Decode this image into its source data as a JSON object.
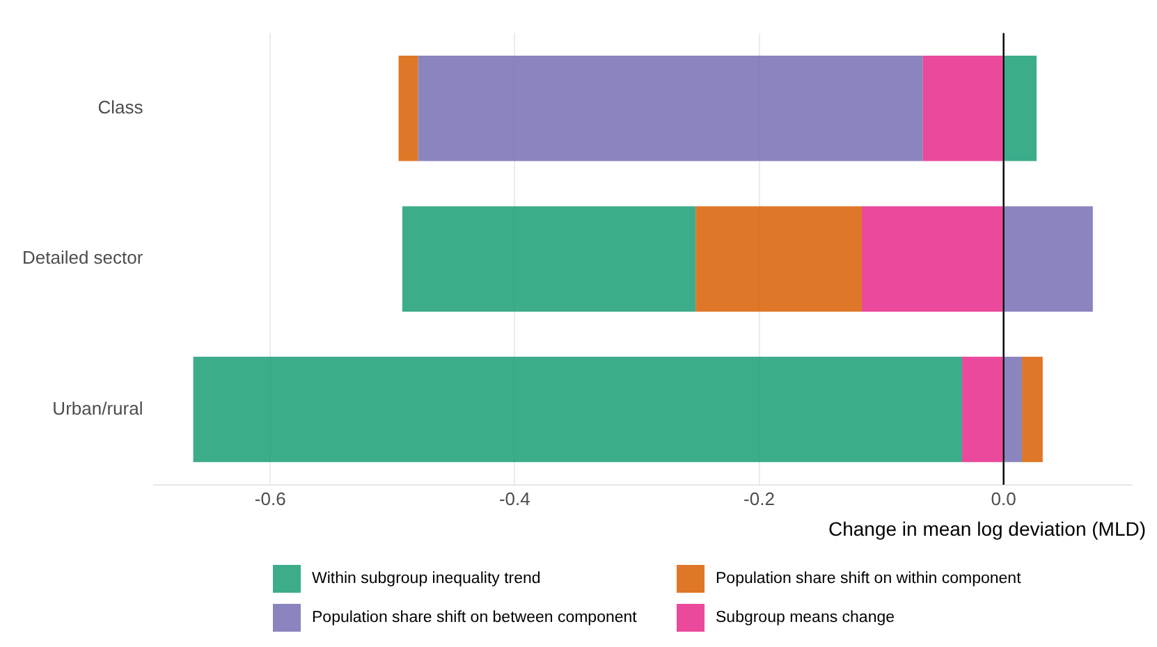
{
  "chart_data": {
    "type": "bar",
    "orientation": "horizontal",
    "stacked": true,
    "xlabel": "Change in mean log deviation (MLD)",
    "categories": [
      "Class",
      "Detailed sector",
      "Urban/rural"
    ],
    "series": [
      {
        "name": "Subgroup means change",
        "color": "#e7298a",
        "values": [
          -0.066,
          -0.116,
          -0.034
        ]
      },
      {
        "name": "Population share shift on between component",
        "color": "#7570b3",
        "values": [
          -0.413,
          0.073,
          0.015
        ]
      },
      {
        "name": "Population share shift on within component",
        "color": "#d95f02",
        "values": [
          -0.016,
          -0.136,
          0.017
        ]
      },
      {
        "name": "Within subgroup inequality trend",
        "color": "#1b9e77",
        "values": [
          0.027,
          -0.24,
          -0.629
        ]
      }
    ],
    "xlim": [
      -0.695,
      0.105
    ],
    "xticks": [
      -0.6,
      -0.4,
      -0.2,
      {
        "value": 0,
        "label": "0.0"
      }
    ],
    "grid": "x",
    "legend": "bottom",
    "ref_lines": [
      {
        "axis": "x",
        "value": 0,
        "color": "#000000"
      }
    ]
  }
}
